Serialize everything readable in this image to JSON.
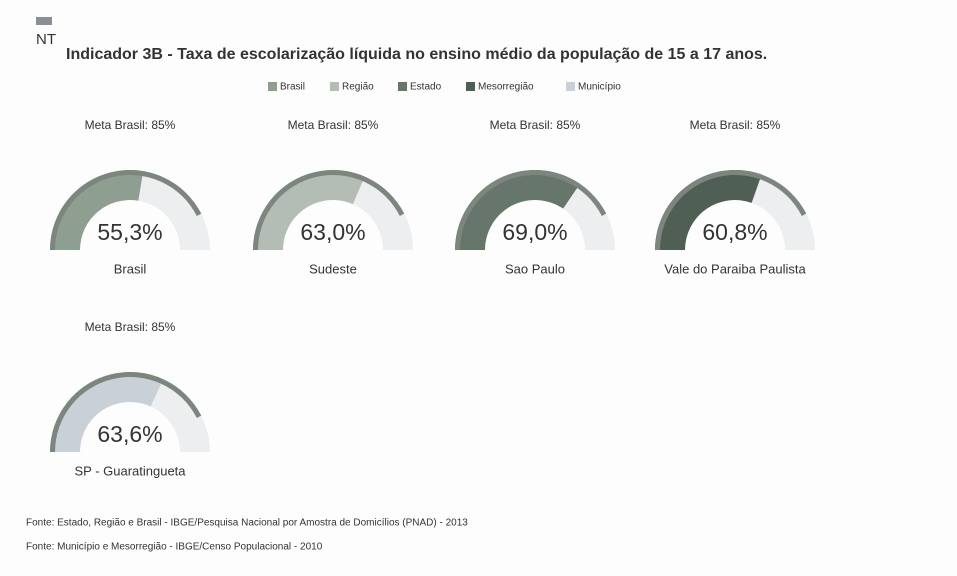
{
  "chart_data": {
    "type": "gauge",
    "icon_label": "NT",
    "title": "Indicador 3B - Taxa de escolarização líquida no ensino médio da população de 15 a 17 anos.",
    "legend": [
      {
        "name": "Brasil",
        "color": "#8e9e90"
      },
      {
        "name": "Região",
        "color": "#b3bdb4"
      },
      {
        "name": "Estado",
        "color": "#66766a"
      },
      {
        "name": "Mesorregião",
        "color": "#4f5f53"
      },
      {
        "name": "Município",
        "color": "#c9d0d8"
      }
    ],
    "ylim": [
      0,
      100
    ],
    "gauges": [
      {
        "name": "Brasil",
        "value": 55.3,
        "value_label": "55,3%",
        "target": 85,
        "target_label": "Meta Brasil: 85%",
        "color": "#8e9e90"
      },
      {
        "name": "Sudeste",
        "value": 63.0,
        "value_label": "63,0%",
        "target": 85,
        "target_label": "Meta Brasil: 85%",
        "color": "#b3bdb4"
      },
      {
        "name": "Sao Paulo",
        "value": 69.0,
        "value_label": "69,0%",
        "target": 85,
        "target_label": "Meta Brasil: 85%",
        "color": "#66766a"
      },
      {
        "name": "Vale do Paraiba Paulista",
        "value": 60.8,
        "value_label": "60,8%",
        "target": 85,
        "target_label": "Meta Brasil: 85%",
        "color": "#4f5f53"
      },
      {
        "name": "SP - Guaratingueta",
        "value": 63.6,
        "value_label": "63,6%",
        "target": 85,
        "target_label": "Meta Brasil: 85%",
        "color": "#c9d0d8"
      }
    ],
    "sources": [
      "Fonte: Estado, Região e Brasil - IBGE/Pesquisa Nacional por Amostra de Domicílios (PNAD) - 2013",
      "Fonte: Município e Mesorregião - IBGE/Censo Populacional - 2010"
    ]
  }
}
